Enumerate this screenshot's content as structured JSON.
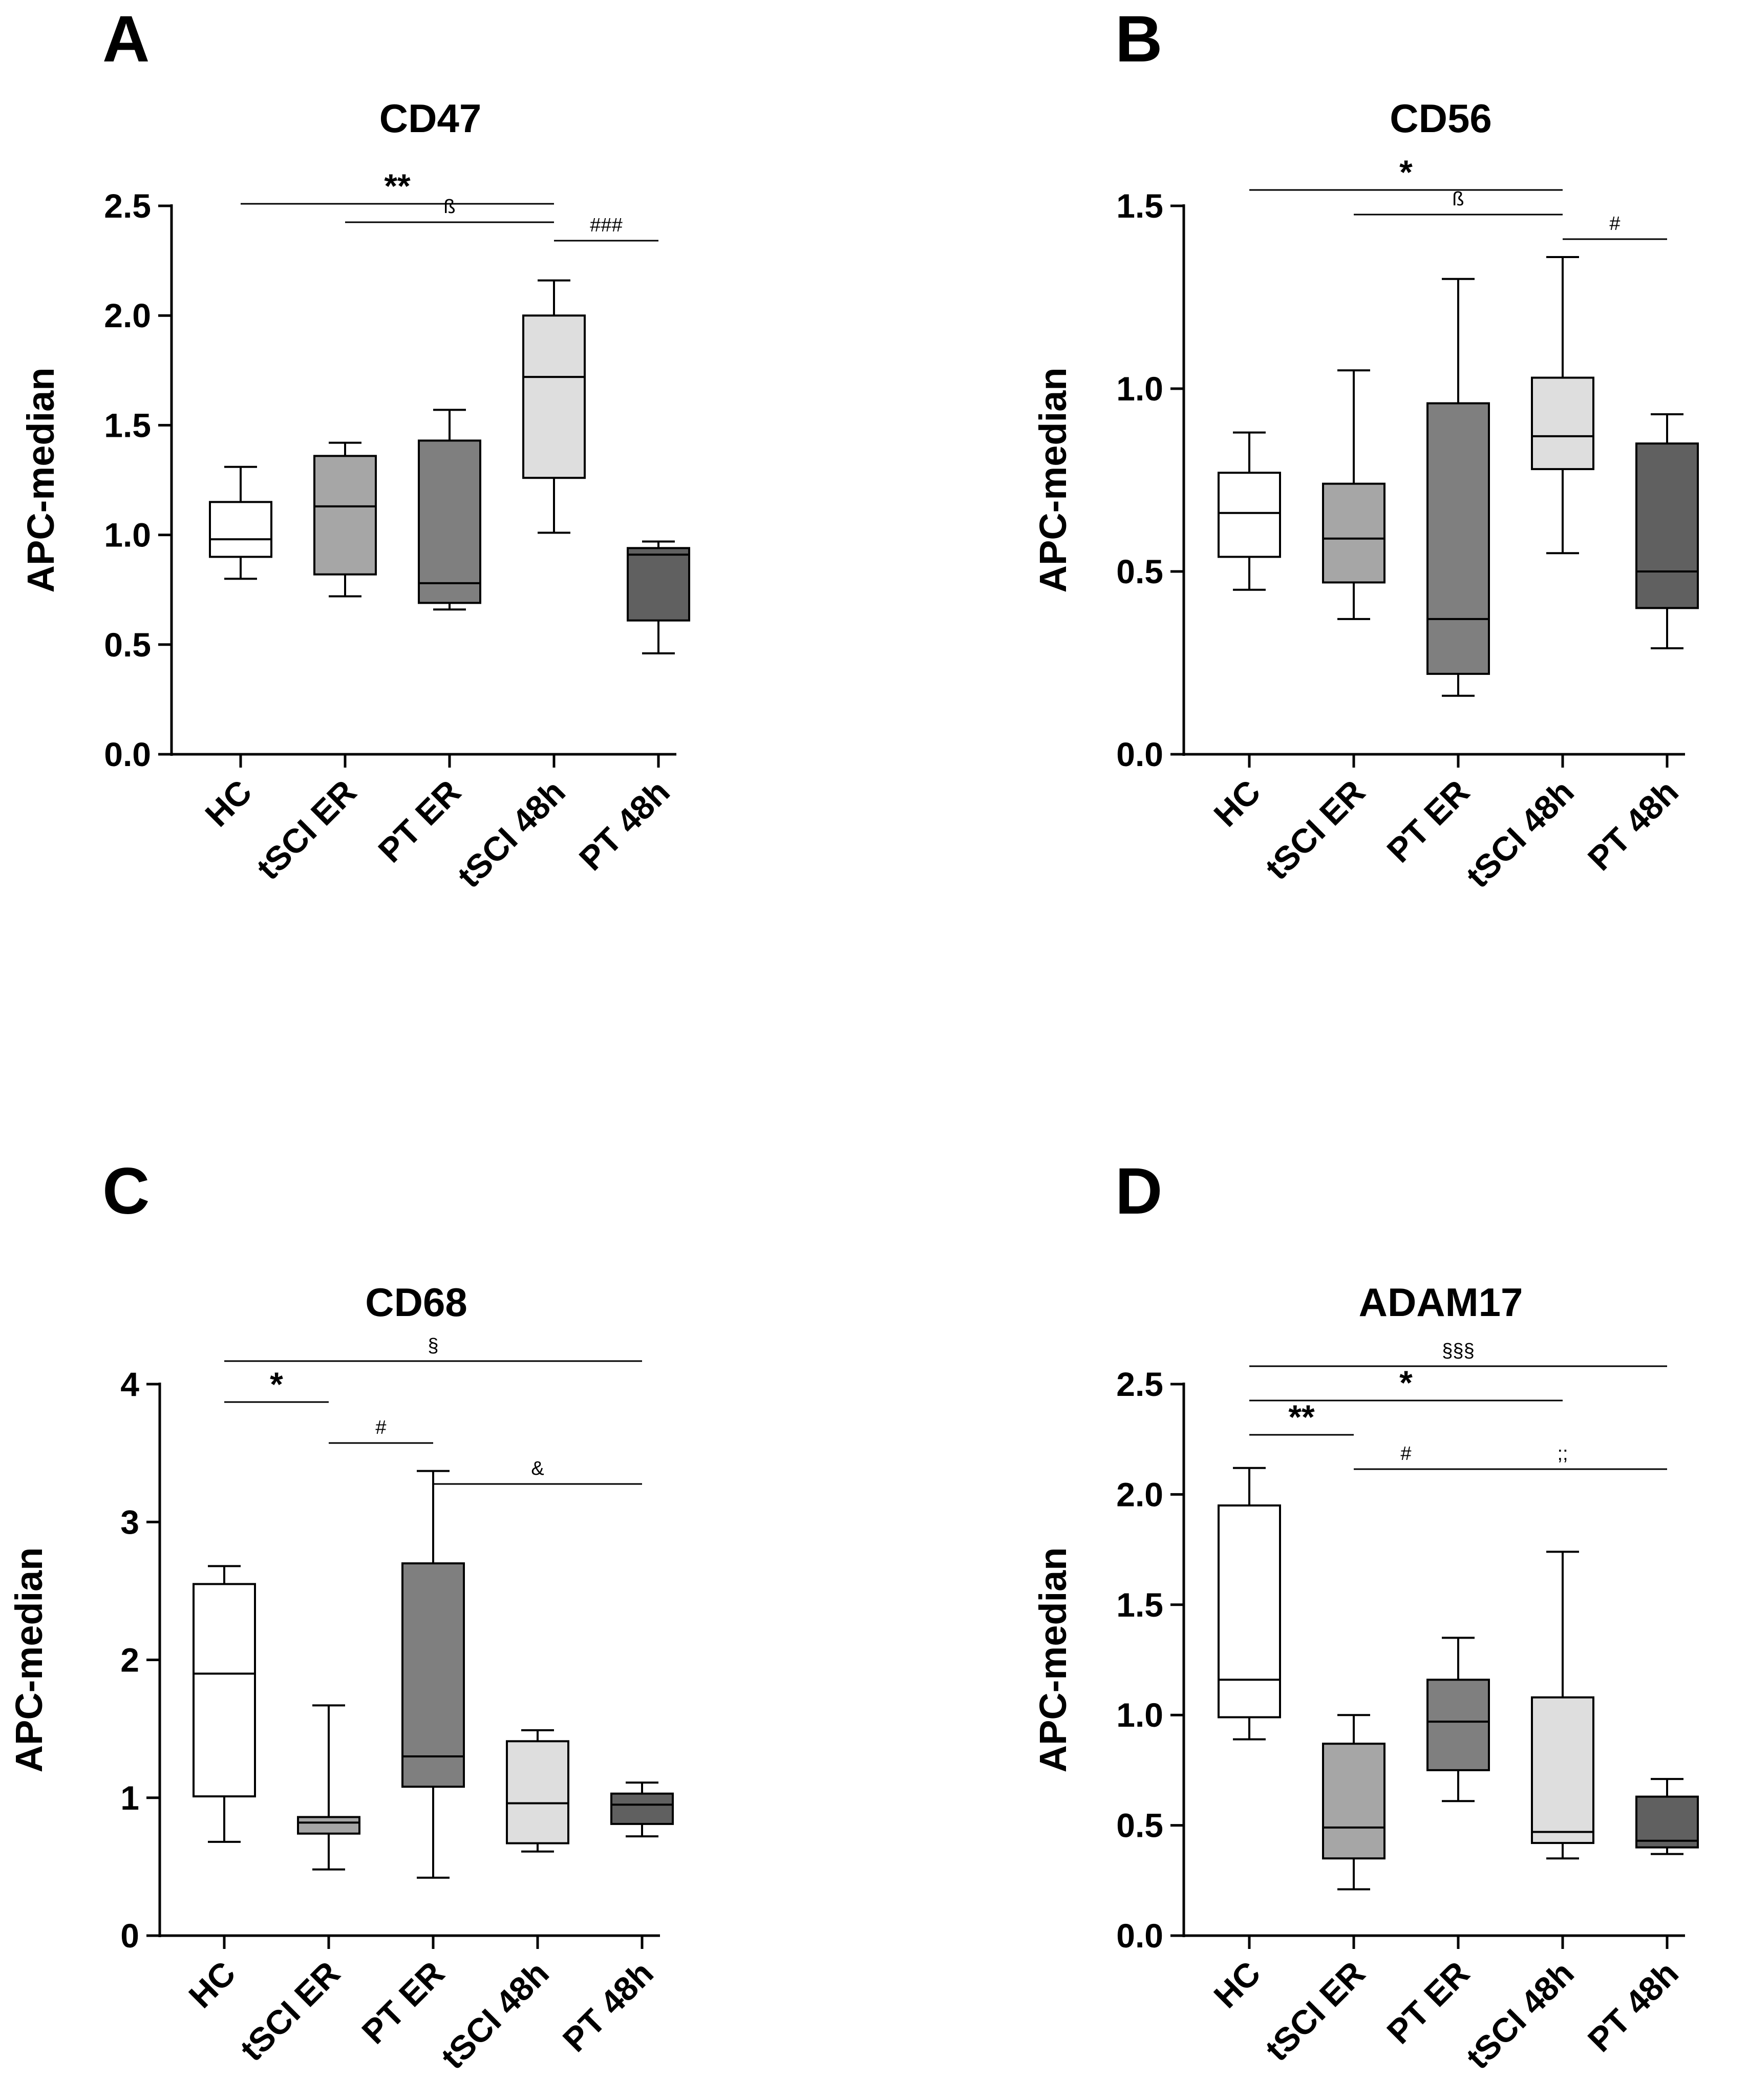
{
  "colors": {
    "HC": "#ffffff",
    "tSCI ER": "#a6a6a6",
    "PT ER": "#7f7f7f",
    "tSCI 48h": "#dedede",
    "PT 48h": "#606060",
    "stroke": "#000000"
  },
  "chart_data": [
    {
      "type": "box",
      "panel": "A",
      "title": "CD47",
      "ylabel": "APC-median",
      "ylim": [
        0,
        2.5
      ],
      "yticks": [
        "0.0",
        "0.5",
        "1.0",
        "1.5",
        "2.0",
        "2.5"
      ],
      "categories": [
        "HC",
        "tSCI ER",
        "PT ER",
        "tSCI 48h",
        "PT 48h"
      ],
      "boxes": [
        {
          "min": 0.8,
          "q1": 0.9,
          "median": 0.98,
          "q3": 1.15,
          "max": 1.31
        },
        {
          "min": 0.72,
          "q1": 0.82,
          "median": 1.13,
          "q3": 1.36,
          "max": 1.42
        },
        {
          "min": 0.66,
          "q1": 0.69,
          "median": 0.78,
          "q3": 1.43,
          "max": 1.57
        },
        {
          "min": 1.01,
          "q1": 1.26,
          "median": 1.72,
          "q3": 2.0,
          "max": 2.16
        },
        {
          "min": 0.46,
          "q1": 0.61,
          "median": 0.91,
          "q3": 0.94,
          "max": 0.97
        }
      ],
      "significance": [
        {
          "from": 0,
          "to": 3,
          "label": "**",
          "level": 0
        },
        {
          "from": 1,
          "to": 3,
          "label": "ß",
          "level": 1
        },
        {
          "from": 3,
          "to": 4,
          "label": "###",
          "level": 2
        }
      ]
    },
    {
      "type": "box",
      "panel": "B",
      "title": "CD56",
      "ylabel": "APC-median",
      "ylim": [
        0,
        1.5
      ],
      "yticks": [
        "0.0",
        "0.5",
        "1.0",
        "1.5"
      ],
      "categories": [
        "HC",
        "tSCI ER",
        "PT ER",
        "tSCI 48h",
        "PT 48h"
      ],
      "boxes": [
        {
          "min": 0.45,
          "q1": 0.54,
          "median": 0.66,
          "q3": 0.77,
          "max": 0.88
        },
        {
          "min": 0.37,
          "q1": 0.47,
          "median": 0.59,
          "q3": 0.74,
          "max": 1.05
        },
        {
          "min": 0.16,
          "q1": 0.22,
          "median": 0.37,
          "q3": 0.96,
          "max": 1.3
        },
        {
          "min": 0.55,
          "q1": 0.78,
          "median": 0.87,
          "q3": 1.03,
          "max": 1.36
        },
        {
          "min": 0.29,
          "q1": 0.4,
          "median": 0.5,
          "q3": 0.85,
          "max": 0.93
        }
      ],
      "significance": [
        {
          "from": 0,
          "to": 3,
          "label": "*",
          "level": 0
        },
        {
          "from": 1,
          "to": 3,
          "label": "ß",
          "level": 1
        },
        {
          "from": 3,
          "to": 4,
          "label": "#",
          "level": 2
        }
      ]
    },
    {
      "type": "box",
      "panel": "C",
      "title": "CD68",
      "ylabel": "APC-median",
      "ylim": [
        0,
        4
      ],
      "yticks": [
        "0",
        "1",
        "2",
        "3",
        "4"
      ],
      "categories": [
        "HC",
        "tSCI ER",
        "PT ER",
        "tSCI 48h",
        "PT 48h"
      ],
      "boxes": [
        {
          "min": 0.68,
          "q1": 1.01,
          "median": 1.9,
          "q3": 2.55,
          "max": 2.68
        },
        {
          "min": 0.48,
          "q1": 0.74,
          "median": 0.82,
          "q3": 0.86,
          "max": 1.67
        },
        {
          "min": 0.42,
          "q1": 1.08,
          "median": 1.3,
          "q3": 2.7,
          "max": 3.37
        },
        {
          "min": 0.61,
          "q1": 0.67,
          "median": 0.96,
          "q3": 1.41,
          "max": 1.49
        },
        {
          "min": 0.72,
          "q1": 0.81,
          "median": 0.95,
          "q3": 1.03,
          "max": 1.11
        }
      ],
      "significance": [
        {
          "from": 0,
          "to": 4,
          "label": "§",
          "level": 0
        },
        {
          "from": 0,
          "to": 1,
          "label": "*",
          "level": 1
        },
        {
          "from": 1,
          "to": 2,
          "label": "#",
          "level": 2
        },
        {
          "from": 2,
          "to": 4,
          "label": "&",
          "level": 3
        }
      ]
    },
    {
      "type": "box",
      "panel": "D",
      "title": "ADAM17",
      "ylabel": "APC-median",
      "ylim": [
        0,
        2.5
      ],
      "yticks": [
        "0.0",
        "0.5",
        "1.0",
        "1.5",
        "2.0",
        "2.5"
      ],
      "categories": [
        "HC",
        "tSCI ER",
        "PT ER",
        "tSCI 48h",
        "PT 48h"
      ],
      "boxes": [
        {
          "min": 0.89,
          "q1": 0.99,
          "median": 1.16,
          "q3": 1.95,
          "max": 2.12
        },
        {
          "min": 0.21,
          "q1": 0.35,
          "median": 0.49,
          "q3": 0.87,
          "max": 1.0
        },
        {
          "min": 0.61,
          "q1": 0.75,
          "median": 0.97,
          "q3": 1.16,
          "max": 1.35
        },
        {
          "min": 0.35,
          "q1": 0.42,
          "median": 0.47,
          "q3": 1.08,
          "max": 1.74
        },
        {
          "min": 0.37,
          "q1": 0.4,
          "median": 0.43,
          "q3": 0.63,
          "max": 0.71
        }
      ],
      "significance": [
        {
          "from": 0,
          "to": 4,
          "label": "§§§",
          "level": 0
        },
        {
          "from": 0,
          "to": 3,
          "label": "*",
          "level": 1
        },
        {
          "from": 0,
          "to": 1,
          "label": "**",
          "level": 2
        },
        {
          "from": 1,
          "to": 2,
          "label": "#",
          "level": 3
        },
        {
          "from": 2,
          "to": 4,
          "label": ";;",
          "level": 3
        }
      ]
    }
  ]
}
